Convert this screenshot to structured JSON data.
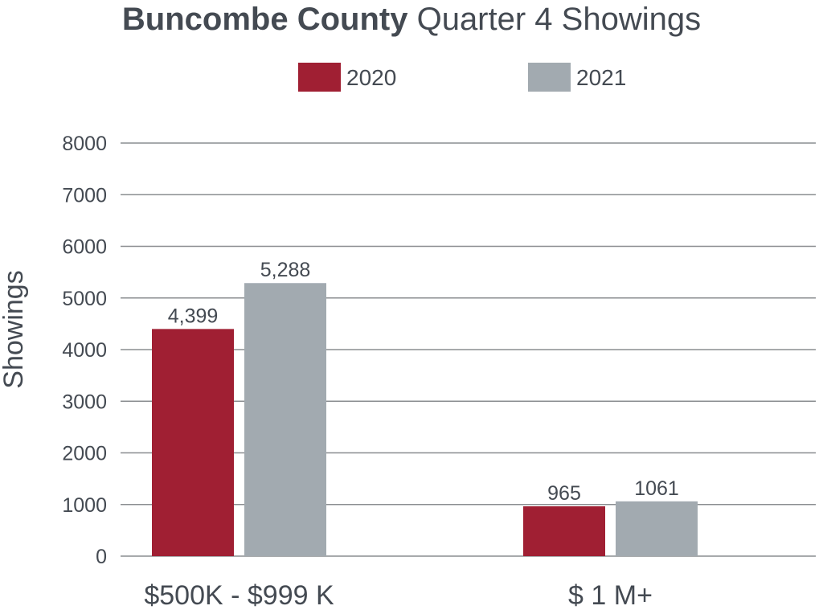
{
  "chart_data": {
    "type": "bar",
    "title": "Buncombe County Quarter 4 Showings",
    "title_bold": "Buncombe County",
    "title_regular": "Quarter 4 Showings",
    "categories": [
      "$500K - $999 K",
      "$ 1 M+"
    ],
    "series": [
      {
        "name": "2020",
        "color": "#a01f33",
        "values": [
          4399,
          965
        ],
        "labels": [
          "4,399",
          "965"
        ]
      },
      {
        "name": "2021",
        "color": "#a2aab0",
        "values": [
          5288,
          1061
        ],
        "labels": [
          "5,288",
          "1061"
        ]
      }
    ],
    "xlabel": "",
    "ylabel": "Showings",
    "ylim": [
      0,
      8000
    ],
    "yticks": [
      0,
      1000,
      2000,
      3000,
      4000,
      5000,
      6000,
      7000,
      8000
    ],
    "grid": true,
    "legend_position": "top-center"
  }
}
